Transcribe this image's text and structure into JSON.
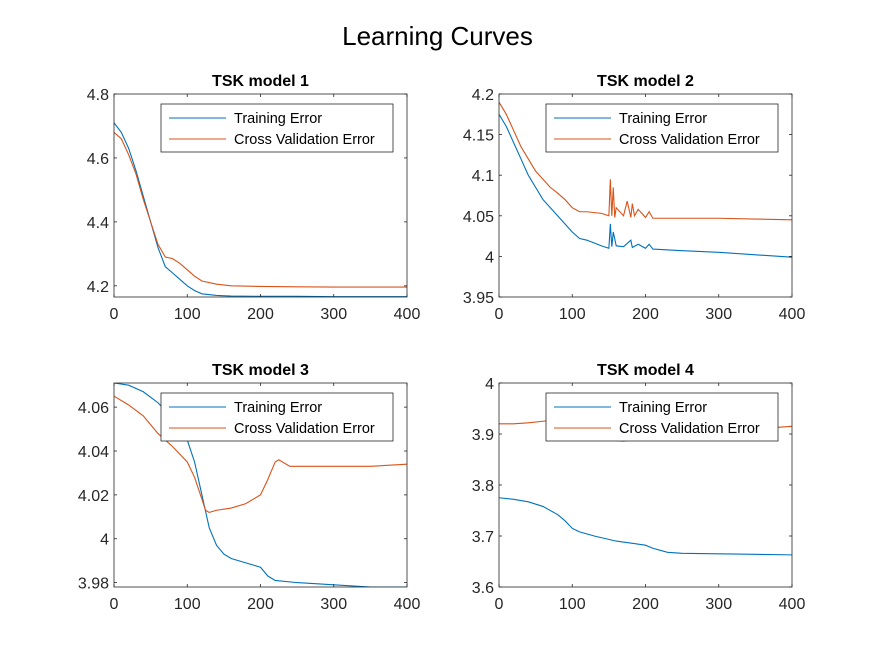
{
  "figure_title": "Learning Curves",
  "chart_data": [
    {
      "type": "line",
      "title": "TSK model 1",
      "xlim": [
        0,
        400
      ],
      "ylim": [
        4.165,
        4.8
      ],
      "xticks": [
        0,
        100,
        200,
        300,
        400
      ],
      "yticks": [
        4.2,
        4.4,
        4.6,
        4.8
      ],
      "xtick_labels": [
        "0",
        "100",
        "200",
        "300",
        "400"
      ],
      "ytick_labels": [
        "4.2",
        "4.4",
        "4.6",
        "4.8"
      ],
      "legend": "top-right",
      "grid": false,
      "series": [
        {
          "name": "Training Error",
          "color": "#0072BD",
          "x": [
            0,
            10,
            20,
            30,
            40,
            50,
            60,
            70,
            80,
            90,
            100,
            110,
            120,
            140,
            160,
            200,
            250,
            300,
            350,
            400
          ],
          "y": [
            4.71,
            4.68,
            4.63,
            4.56,
            4.48,
            4.4,
            4.32,
            4.26,
            4.24,
            4.22,
            4.2,
            4.185,
            4.175,
            4.17,
            4.168,
            4.167,
            4.167,
            4.166,
            4.166,
            4.166
          ]
        },
        {
          "name": "Cross Validation Error",
          "color": "#D95319",
          "x": [
            0,
            10,
            20,
            30,
            40,
            50,
            60,
            70,
            80,
            90,
            100,
            110,
            120,
            140,
            160,
            200,
            250,
            300,
            350,
            400
          ],
          "y": [
            4.68,
            4.66,
            4.61,
            4.55,
            4.47,
            4.4,
            4.33,
            4.29,
            4.285,
            4.27,
            4.25,
            4.23,
            4.215,
            4.205,
            4.2,
            4.198,
            4.197,
            4.196,
            4.196,
            4.196
          ]
        }
      ]
    },
    {
      "type": "line",
      "title": "TSK model 2",
      "xlim": [
        0,
        400
      ],
      "ylim": [
        3.95,
        4.2
      ],
      "xticks": [
        0,
        100,
        200,
        300,
        400
      ],
      "yticks": [
        3.95,
        4.0,
        4.05,
        4.1,
        4.15,
        4.2
      ],
      "xtick_labels": [
        "0",
        "100",
        "200",
        "300",
        "400"
      ],
      "ytick_labels": [
        "3.95",
        "4",
        "4.05",
        "4.1",
        "4.15",
        "4.2"
      ],
      "legend": "top-right",
      "grid": false,
      "series": [
        {
          "name": "Training Error",
          "color": "#0072BD",
          "x": [
            0,
            10,
            20,
            30,
            40,
            50,
            60,
            70,
            80,
            90,
            100,
            110,
            120,
            140,
            150,
            152,
            154,
            156,
            160,
            170,
            180,
            182,
            190,
            200,
            205,
            210,
            250,
            300,
            350,
            400
          ],
          "y": [
            4.175,
            4.16,
            4.14,
            4.12,
            4.1,
            4.085,
            4.07,
            4.06,
            4.05,
            4.04,
            4.03,
            4.022,
            4.02,
            4.013,
            4.01,
            4.04,
            4.012,
            4.03,
            4.013,
            4.012,
            4.02,
            4.011,
            4.015,
            4.01,
            4.015,
            4.009,
            4.007,
            4.005,
            4.002,
            3.999
          ]
        },
        {
          "name": "Cross Validation Error",
          "color": "#D95319",
          "x": [
            0,
            10,
            20,
            30,
            40,
            50,
            60,
            70,
            80,
            90,
            100,
            110,
            120,
            140,
            150,
            152,
            154,
            156,
            158,
            160,
            170,
            175,
            180,
            182,
            185,
            190,
            200,
            205,
            210,
            250,
            300,
            350,
            400
          ],
          "y": [
            4.19,
            4.175,
            4.155,
            4.135,
            4.12,
            4.105,
            4.095,
            4.085,
            4.078,
            4.07,
            4.06,
            4.055,
            4.055,
            4.053,
            4.05,
            4.095,
            4.05,
            4.085,
            4.048,
            4.06,
            4.05,
            4.068,
            4.048,
            4.065,
            4.05,
            4.058,
            4.048,
            4.055,
            4.047,
            4.047,
            4.047,
            4.046,
            4.045
          ]
        }
      ]
    },
    {
      "type": "line",
      "title": "TSK model 3",
      "xlim": [
        0,
        400
      ],
      "ylim": [
        3.978,
        4.071
      ],
      "xticks": [
        0,
        100,
        200,
        300,
        400
      ],
      "yticks": [
        3.98,
        4.0,
        4.02,
        4.04,
        4.06
      ],
      "xtick_labels": [
        "0",
        "100",
        "200",
        "300",
        "400"
      ],
      "ytick_labels": [
        "3.98",
        "4",
        "4.02",
        "4.04",
        "4.06"
      ],
      "legend": "top-right",
      "grid": false,
      "series": [
        {
          "name": "Training Error",
          "color": "#0072BD",
          "x": [
            0,
            20,
            40,
            60,
            80,
            100,
            110,
            120,
            130,
            140,
            150,
            160,
            180,
            200,
            210,
            220,
            250,
            300,
            350,
            400
          ],
          "y": [
            4.071,
            4.07,
            4.067,
            4.062,
            4.055,
            4.045,
            4.035,
            4.02,
            4.005,
            3.997,
            3.993,
            3.991,
            3.989,
            3.987,
            3.983,
            3.981,
            3.98,
            3.979,
            3.978,
            3.978
          ]
        },
        {
          "name": "Cross Validation Error",
          "color": "#D95319",
          "x": [
            0,
            20,
            40,
            60,
            80,
            100,
            110,
            120,
            125,
            130,
            140,
            160,
            180,
            200,
            210,
            220,
            225,
            240,
            260,
            300,
            350,
            400
          ],
          "y": [
            4.065,
            4.061,
            4.056,
            4.048,
            4.042,
            4.035,
            4.028,
            4.018,
            4.013,
            4.012,
            4.013,
            4.014,
            4.016,
            4.02,
            4.027,
            4.035,
            4.036,
            4.033,
            4.033,
            4.033,
            4.033,
            4.034
          ]
        }
      ]
    },
    {
      "type": "line",
      "title": "TSK model 4",
      "xlim": [
        0,
        400
      ],
      "ylim": [
        3.6,
        4.0
      ],
      "xticks": [
        0,
        100,
        200,
        300,
        400
      ],
      "yticks": [
        3.6,
        3.7,
        3.8,
        3.9,
        4.0
      ],
      "xtick_labels": [
        "0",
        "100",
        "200",
        "300",
        "400"
      ],
      "ytick_labels": [
        "3.6",
        "3.7",
        "3.8",
        "3.9",
        "4"
      ],
      "legend": "top-right",
      "grid": false,
      "series": [
        {
          "name": "Training Error",
          "color": "#0072BD",
          "x": [
            0,
            20,
            40,
            60,
            80,
            90,
            100,
            110,
            130,
            160,
            200,
            210,
            230,
            250,
            300,
            350,
            400
          ],
          "y": [
            3.775,
            3.772,
            3.767,
            3.758,
            3.742,
            3.73,
            3.715,
            3.708,
            3.7,
            3.69,
            3.682,
            3.676,
            3.668,
            3.666,
            3.665,
            3.664,
            3.663
          ]
        },
        {
          "name": "Cross Validation Error",
          "color": "#D95319",
          "x": [
            0,
            20,
            40,
            60,
            80,
            100,
            120,
            140,
            160,
            170,
            180,
            200,
            220,
            250,
            300,
            350,
            400
          ],
          "y": [
            3.92,
            3.92,
            3.922,
            3.925,
            3.928,
            3.925,
            3.915,
            3.9,
            3.887,
            3.886,
            3.888,
            3.892,
            3.9,
            3.905,
            3.908,
            3.91,
            3.915
          ]
        }
      ]
    }
  ]
}
